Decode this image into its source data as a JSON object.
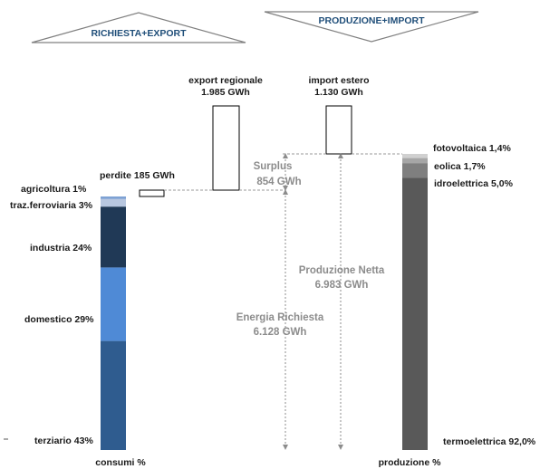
{
  "chart_data": {
    "type": "waterfall",
    "headers": {
      "left": "RICHIESTA+EXPORT",
      "right": "PRODUZIONE+IMPORT"
    },
    "consumi": {
      "label": "consumi %",
      "segments": [
        {
          "name": "terziario",
          "label": "terziario 43%",
          "value": 43,
          "color": "#2f5c8f"
        },
        {
          "name": "domestico",
          "label": "domestico 29%",
          "value": 29,
          "color": "#4f8ad6"
        },
        {
          "name": "industria",
          "label": "industria 24%",
          "value": 24,
          "color": "#203956"
        },
        {
          "name": "traz-ferroviaria",
          "label": "traz.ferroviaria 3%",
          "value": 3,
          "color": "#b8c7e0"
        },
        {
          "name": "agricoltura",
          "label": "agricoltura 1%",
          "value": 1,
          "color": "#7ea2d4"
        }
      ]
    },
    "produzione": {
      "label": "produzione %",
      "segments": [
        {
          "name": "termoelettrica",
          "label": "termoelettrica 92,0%",
          "value": 92.0,
          "color": "#595959"
        },
        {
          "name": "idroelettrica",
          "label": "idroelettrica 5,0%",
          "value": 5.0,
          "color": "#7f7f7f"
        },
        {
          "name": "eolica",
          "label": "eolica 1,7%",
          "value": 1.7,
          "color": "#a6a6a6"
        },
        {
          "name": "fotovoltaica",
          "label": "fotovoltaica 1,4%",
          "value": 1.4,
          "color": "#d0d0d0"
        }
      ]
    },
    "flows": {
      "energia_richiesta": {
        "line1": "Energia Richiesta",
        "line2": "6.128 GWh",
        "value": 6128
      },
      "perdite": {
        "label": "perdite 185 GWh",
        "value": 185
      },
      "export": {
        "line1": "export regionale",
        "line2": "1.985 GWh",
        "value": 1985
      },
      "produzione_netta": {
        "line1": "Produzione Netta",
        "line2": "6.983 GWh",
        "value": 6983
      },
      "import": {
        "line1": "import estero",
        "line2": "1.130 GWh",
        "value": 1130
      },
      "surplus": {
        "line1": "Surplus",
        "line2": "854 GWh",
        "value": 854
      }
    },
    "colors": {
      "outline": "#000000",
      "arrow": "#8c8c8c",
      "header_text": "#1f4e79"
    }
  }
}
